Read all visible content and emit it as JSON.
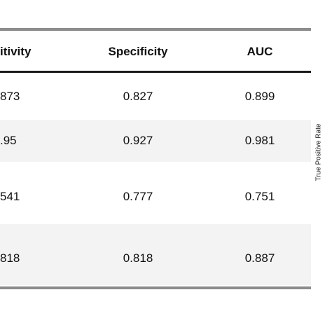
{
  "table": {
    "headers": {
      "sensitivity": "itivity",
      "specificity": "Specificity",
      "auc": "AUC"
    },
    "rows": [
      {
        "sensitivity": "873",
        "specificity": "0.827",
        "auc": "0.899"
      },
      {
        "sensitivity": ".95",
        "specificity": "0.927",
        "auc": "0.981"
      },
      {
        "sensitivity": "541",
        "specificity": "0.777",
        "auc": "0.751"
      },
      {
        "sensitivity": "818",
        "specificity": "0.818",
        "auc": "0.887"
      }
    ]
  },
  "side_plot": {
    "ylabel": "True Positive Rate"
  }
}
